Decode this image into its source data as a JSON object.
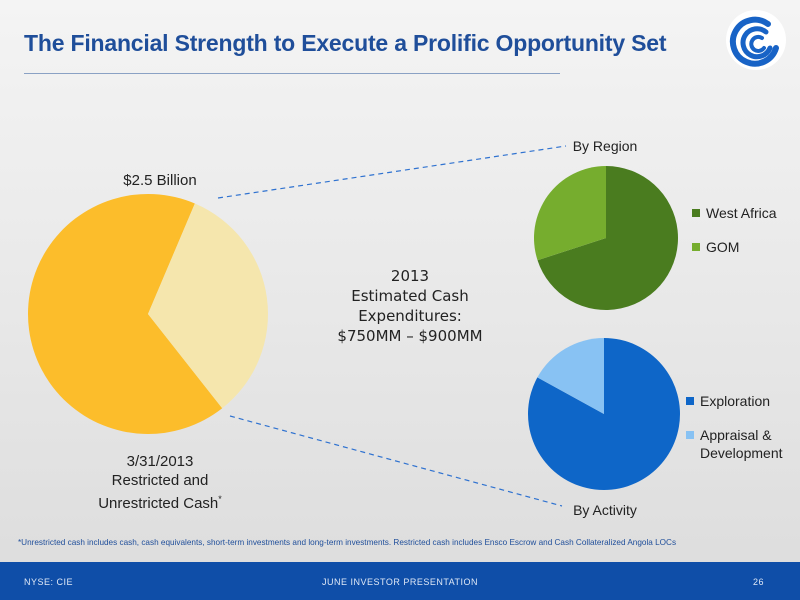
{
  "slide": {
    "title": "The Financial Strength to Execute a Prolific Opportunity Set",
    "footnote": "*Unrestricted cash includes cash, cash equivalents, short-term investments and long-term investments.  Restricted cash includes Ensco Escrow and Cash Collateralized Angola LOCs"
  },
  "footer": {
    "left": "NYSE: CIE",
    "center": "JUNE INVESTOR PRESENTATION",
    "page_number": "26"
  },
  "center_text": [
    "2013",
    "Estimated Cash",
    "Expenditures:",
    "$750MM – $900MM"
  ],
  "chart_data": [
    {
      "type": "pie",
      "label_top": "$2.5 Billion",
      "caption": [
        "3/31/2013",
        "Restricted and",
        "Unrestricted Cash"
      ],
      "caption_marker": "*",
      "slices": [
        {
          "value": 67,
          "color": "#fcbd2b"
        },
        {
          "value": 33,
          "color": "#f5e6ad"
        }
      ]
    },
    {
      "type": "pie",
      "title": "By Region",
      "legend_position": "right",
      "series": [
        {
          "name": "West Africa",
          "value": 70,
          "color": "#4a7c1f"
        },
        {
          "name": "GOM",
          "value": 30,
          "color": "#76ad2e"
        }
      ]
    },
    {
      "type": "pie",
      "title": "By Activity",
      "legend_position": "right",
      "series": [
        {
          "name": "Exploration",
          "value": 83,
          "color": "#0e66c8"
        },
        {
          "name": "Appraisal & Development",
          "value": 17,
          "color": "#88c2f3"
        }
      ]
    }
  ],
  "colors": {
    "title": "#1f4e9a",
    "footer_bg": "#0f4ea8",
    "connector": "#2f72d0"
  }
}
